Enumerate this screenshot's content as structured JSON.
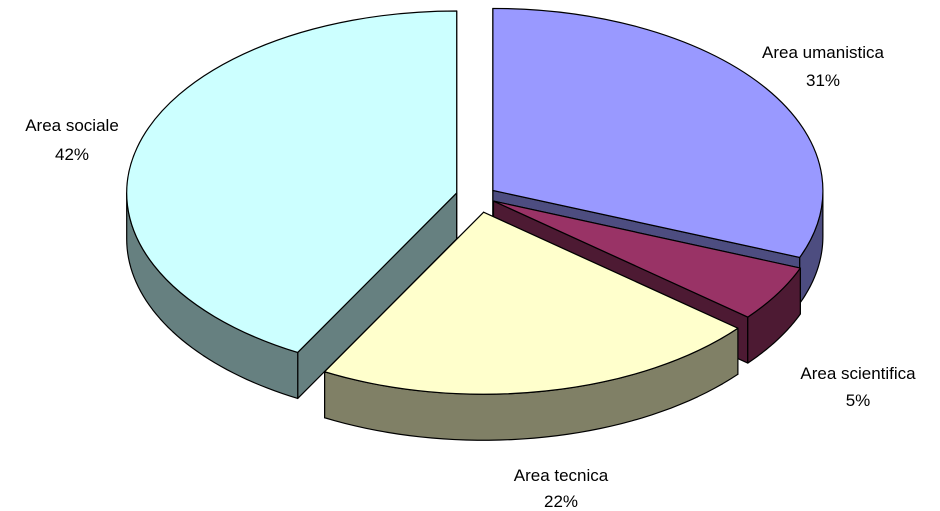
{
  "chart_data": {
    "type": "pie",
    "style": "3d-exploded",
    "title": "",
    "legend": "none",
    "slices": [
      {
        "name": "Area umanistica",
        "percent_label": "31%",
        "value": 31,
        "color": "#9999ff",
        "side_color": "#4d4d80"
      },
      {
        "name": "Area scientifica",
        "percent_label": "5%",
        "value": 5,
        "color": "#993366",
        "side_color": "#4d1a33"
      },
      {
        "name": "Area tecnica",
        "percent_label": "22%",
        "value": 22,
        "color": "#ffffcc",
        "side_color": "#808066"
      },
      {
        "name": "Area sociale",
        "percent_label": "42%",
        "value": 42,
        "color": "#ccffff",
        "side_color": "#668080"
      }
    ]
  }
}
